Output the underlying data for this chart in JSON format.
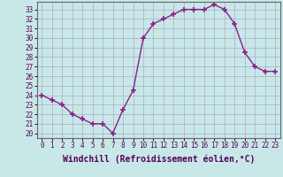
{
  "x": [
    0,
    1,
    2,
    3,
    4,
    5,
    6,
    7,
    8,
    9,
    10,
    11,
    12,
    13,
    14,
    15,
    16,
    17,
    18,
    19,
    20,
    21,
    22,
    23
  ],
  "y": [
    24,
    23.5,
    23,
    22,
    21.5,
    21,
    21,
    20,
    22.5,
    24.5,
    30,
    31.5,
    32,
    32.5,
    33,
    33,
    33,
    33.5,
    33,
    31.5,
    28.5,
    27,
    26.5,
    26.5
  ],
  "line_color": "#882288",
  "marker": "+",
  "marker_size": 4,
  "marker_lw": 1.2,
  "line_width": 1.0,
  "bg_color": "#c8e8e8",
  "grid_color": "#aaaacc",
  "xlabel": "Windchill (Refroidissement éolien,°C)",
  "xlabel_fontsize": 7,
  "ylim": [
    19.5,
    33.8
  ],
  "xlim": [
    -0.5,
    23.5
  ],
  "yticks": [
    20,
    21,
    22,
    23,
    24,
    25,
    26,
    27,
    28,
    29,
    30,
    31,
    32,
    33
  ],
  "xticks": [
    0,
    1,
    2,
    3,
    4,
    5,
    6,
    7,
    8,
    9,
    10,
    11,
    12,
    13,
    14,
    15,
    16,
    17,
    18,
    19,
    20,
    21,
    22,
    23
  ],
  "tick_fontsize": 5.5,
  "spine_color": "#666666"
}
